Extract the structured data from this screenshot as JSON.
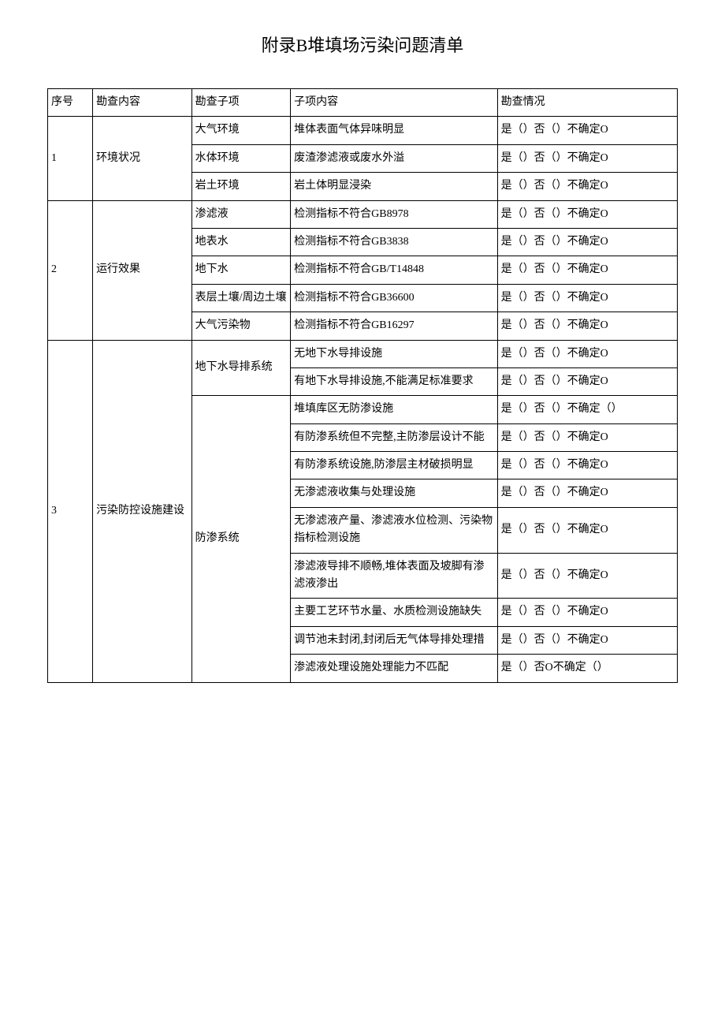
{
  "title": "附录B堆填场污染问题清单",
  "headers": {
    "seq": "序号",
    "content": "勘查内容",
    "subitem": "勘查子项",
    "detail": "子项内容",
    "status": "勘查情况"
  },
  "status_options": {
    "standard": "是（）否（）不确定O",
    "standard_paren": "是（）否（）不确定（）",
    "variant_o_no": "是（）否O不确定（）"
  },
  "sections": [
    {
      "seq": "1",
      "content": "环境状况",
      "groups": [
        {
          "subitem": "大气环境",
          "rows": [
            {
              "detail": "堆体表面气体异味明显",
              "status": "是（）否（）不确定O"
            }
          ]
        },
        {
          "subitem": "水体环境",
          "rows": [
            {
              "detail": "废渣渗滤液或废水外溢",
              "status": "是（）否（）不确定O"
            }
          ]
        },
        {
          "subitem": "岩土环境",
          "rows": [
            {
              "detail": "岩土体明显浸染",
              "status": "是（）否（）不确定O"
            }
          ]
        }
      ]
    },
    {
      "seq": "2",
      "content": "运行效果",
      "groups": [
        {
          "subitem": "渗滤液",
          "rows": [
            {
              "detail": "检测指标不符合GB8978",
              "status": "是（）否（）不确定O"
            }
          ]
        },
        {
          "subitem": "地表水",
          "rows": [
            {
              "detail": "检测指标不符合GB3838",
              "status": "是（）否（）不确定O"
            }
          ]
        },
        {
          "subitem": "地下水",
          "rows": [
            {
              "detail": "检测指标不符合GB/T14848",
              "status": "是（）否（）不确定O"
            }
          ]
        },
        {
          "subitem": "表层土壤/周边土壤",
          "rows": [
            {
              "detail": "检测指标不符合GB36600",
              "status": "是（）否（）不确定O"
            }
          ]
        },
        {
          "subitem": "大气污染物",
          "rows": [
            {
              "detail": "检测指标不符合GB16297",
              "status": "是（）否（）不确定O"
            }
          ]
        }
      ]
    },
    {
      "seq": "3",
      "content": "污染防控设施建设",
      "groups": [
        {
          "subitem": "地下水导排系统",
          "rows": [
            {
              "detail": "无地下水导排设施",
              "status": "是（）否（）不确定O"
            },
            {
              "detail": "有地下水导排设施,不能满足标准要求",
              "status": "是（）否（）不确定O"
            }
          ]
        },
        {
          "subitem": "防渗系统",
          "rows": [
            {
              "detail": "堆填库区无防渗设施",
              "status": "是（）否（）不确定（）"
            },
            {
              "detail": "有防渗系统但不完整,主防渗层设计不能",
              "status": "是（）否（）不确定O"
            },
            {
              "detail": "有防渗系统设施,防渗层主材破损明显",
              "status": "是（）否（）不确定O"
            },
            {
              "detail": "无渗滤液收集与处理设施",
              "status": "是（）否（）不确定O"
            },
            {
              "detail": "无渗滤液产量、渗滤液水位检测、污染物指标检测设施",
              "status": "是（）否（）不确定O"
            },
            {
              "detail": "渗滤液导排不顺畅,堆体表面及坡脚有渗滤液渗出",
              "status": "是（）否（）不确定O"
            },
            {
              "detail": "主要工艺环节水量、水质检测设施缺失",
              "status": "是（）否（）不确定O"
            },
            {
              "detail": "调节池未封闭,封闭后无气体导排处理措",
              "status": "是（）否（）不确定O"
            },
            {
              "detail": "渗滤液处理设施处理能力不匹配",
              "status": "是（）否O不确定（）"
            }
          ]
        }
      ]
    }
  ]
}
